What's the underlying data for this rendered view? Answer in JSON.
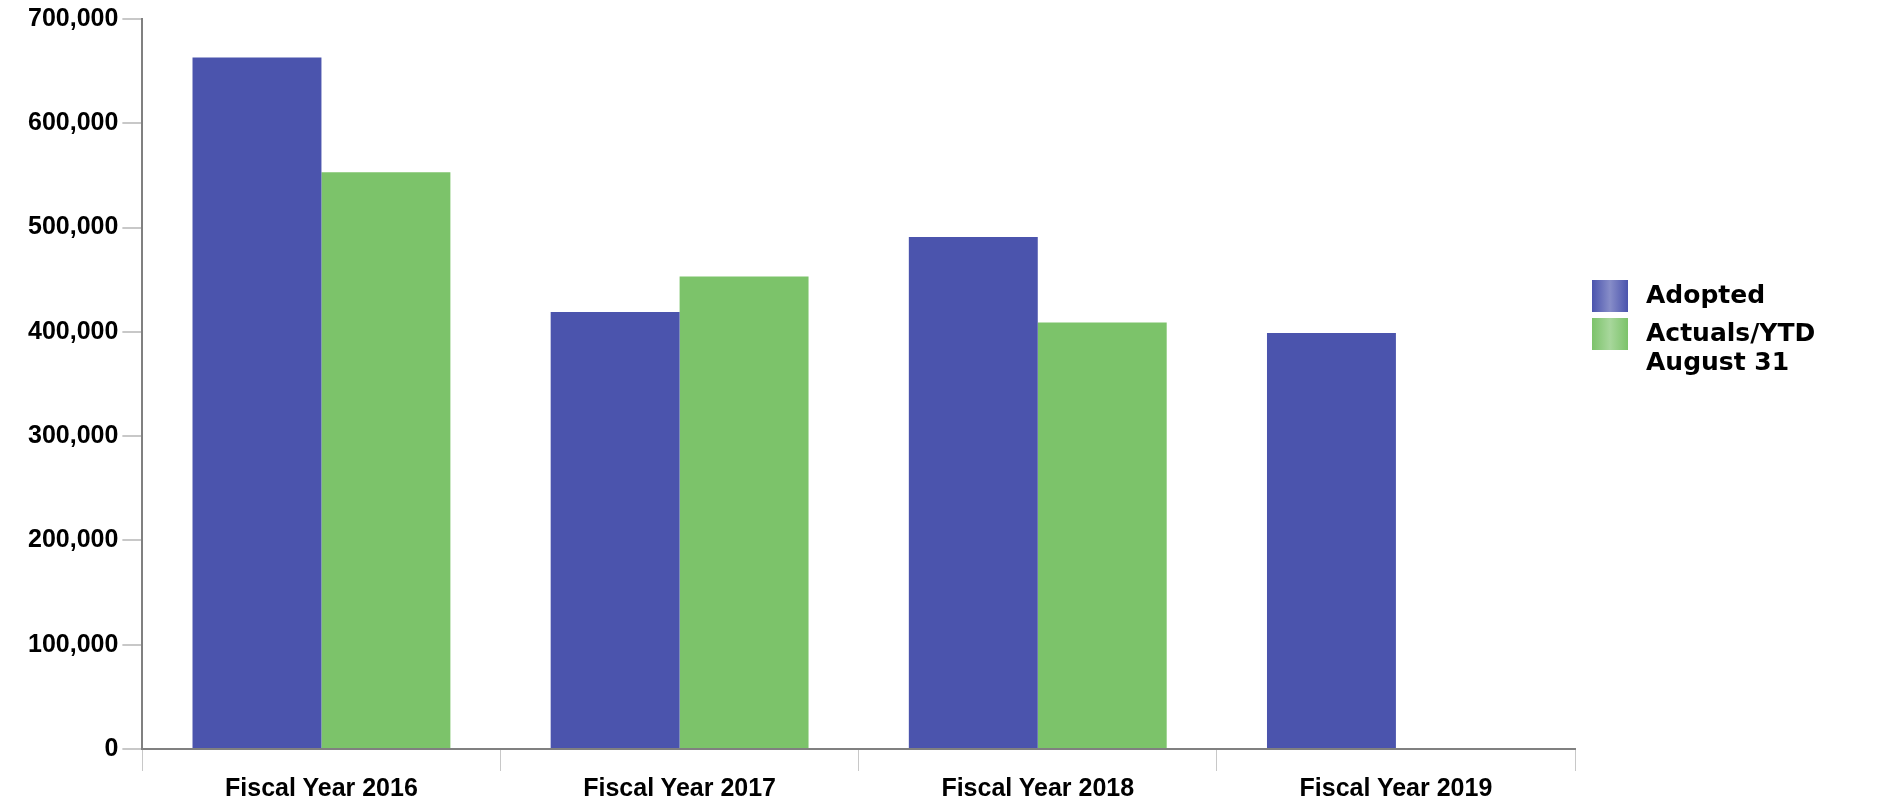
{
  "chart_data": {
    "type": "bar",
    "categories": [
      "Fiscal Year 2016",
      "Fiscal Year 2017",
      "Fiscal Year 2018",
      "Fiscal Year 2019"
    ],
    "series": [
      {
        "name": "Adopted",
        "color": "#4b54ad",
        "values": [
          663000,
          419000,
          491000,
          399000
        ]
      },
      {
        "name": "Actuals/YTD August 31",
        "color": "#7cc36a",
        "values": [
          553000,
          453000,
          409000,
          null
        ]
      }
    ],
    "ylim": [
      0,
      700000
    ],
    "yticks": [
      0,
      {
        "value": 100000,
        "label": "100,000"
      },
      {
        "value": 200000,
        "label": "200,000"
      },
      {
        "value": 300000,
        "label": "300,000"
      },
      {
        "value": 400000,
        "label": "400,000"
      },
      {
        "value": 500000,
        "label": "500,000"
      },
      {
        "value": 600000,
        "label": "600,000"
      },
      {
        "value": 700000,
        "label": "700,000"
      }
    ],
    "grid": false,
    "legend": "right"
  }
}
